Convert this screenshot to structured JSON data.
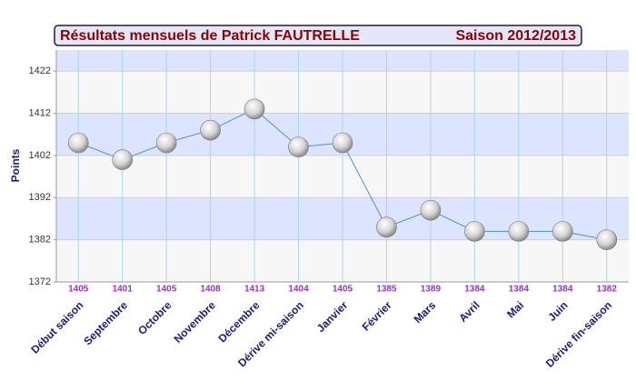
{
  "chart_data": {
    "type": "line",
    "title": "Résultats mensuels de  Patrick FAUTRELLE",
    "subtitle": "Saison 2012/2013",
    "y_label": "Points",
    "categories": [
      "Début saison",
      "Septembre",
      "Octobre",
      "Novembre",
      "Décembre",
      "Dérive mi-saison",
      "Janvier",
      "Février",
      "Mars",
      "Avril",
      "Mai",
      "Juin",
      "Dérive fin-saison"
    ],
    "series": [
      {
        "name": "Points",
        "color": "#4a90d9",
        "values": [
          1405,
          1401,
          1405,
          1408,
          1413,
          1404,
          1405,
          1385,
          1389,
          1384,
          1384,
          1384,
          1382
        ]
      }
    ],
    "ylim": [
      1372,
      1427
    ],
    "yticks": [
      1372,
      1382,
      1392,
      1402,
      1412,
      1422
    ],
    "grid": true
  }
}
